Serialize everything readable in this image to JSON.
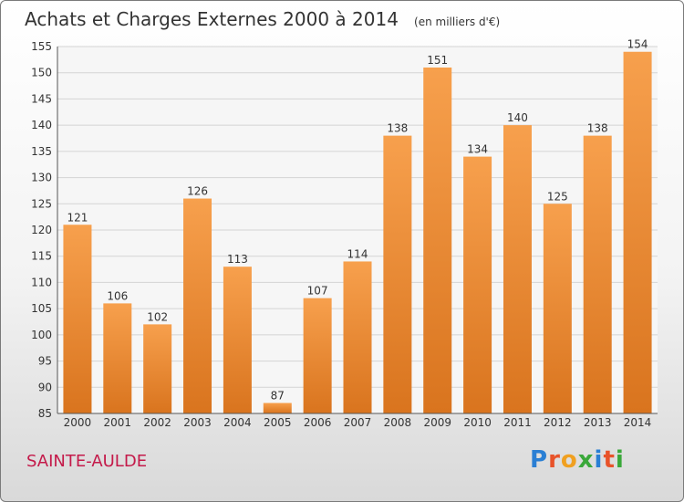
{
  "header": {
    "title": "Achats et Charges Externes 2000 à 2014",
    "unit": "(en milliers d'€)"
  },
  "footer": {
    "commune": "SAINTE-AULDE",
    "logo": "Proxiti"
  },
  "colors": {
    "bar_top": "#f7a04d",
    "bar_bottom": "#d9741e",
    "commune_text": "#c41a4a"
  },
  "chart_data": {
    "type": "bar",
    "title": "Achats et Charges Externes 2000 à 2014",
    "subtitle": "(en milliers d'€)",
    "xlabel": "",
    "ylabel": "",
    "categories": [
      "2000",
      "2001",
      "2002",
      "2003",
      "2004",
      "2005",
      "2006",
      "2007",
      "2008",
      "2009",
      "2010",
      "2011",
      "2012",
      "2013",
      "2014"
    ],
    "values": [
      121,
      106,
      102,
      126,
      113,
      87,
      107,
      114,
      138,
      151,
      134,
      140,
      125,
      138,
      154
    ],
    "ylim": [
      85,
      155
    ],
    "yticks": [
      85,
      90,
      95,
      100,
      105,
      110,
      115,
      120,
      125,
      130,
      135,
      140,
      145,
      150,
      155
    ],
    "grid": true,
    "legend": "none"
  }
}
